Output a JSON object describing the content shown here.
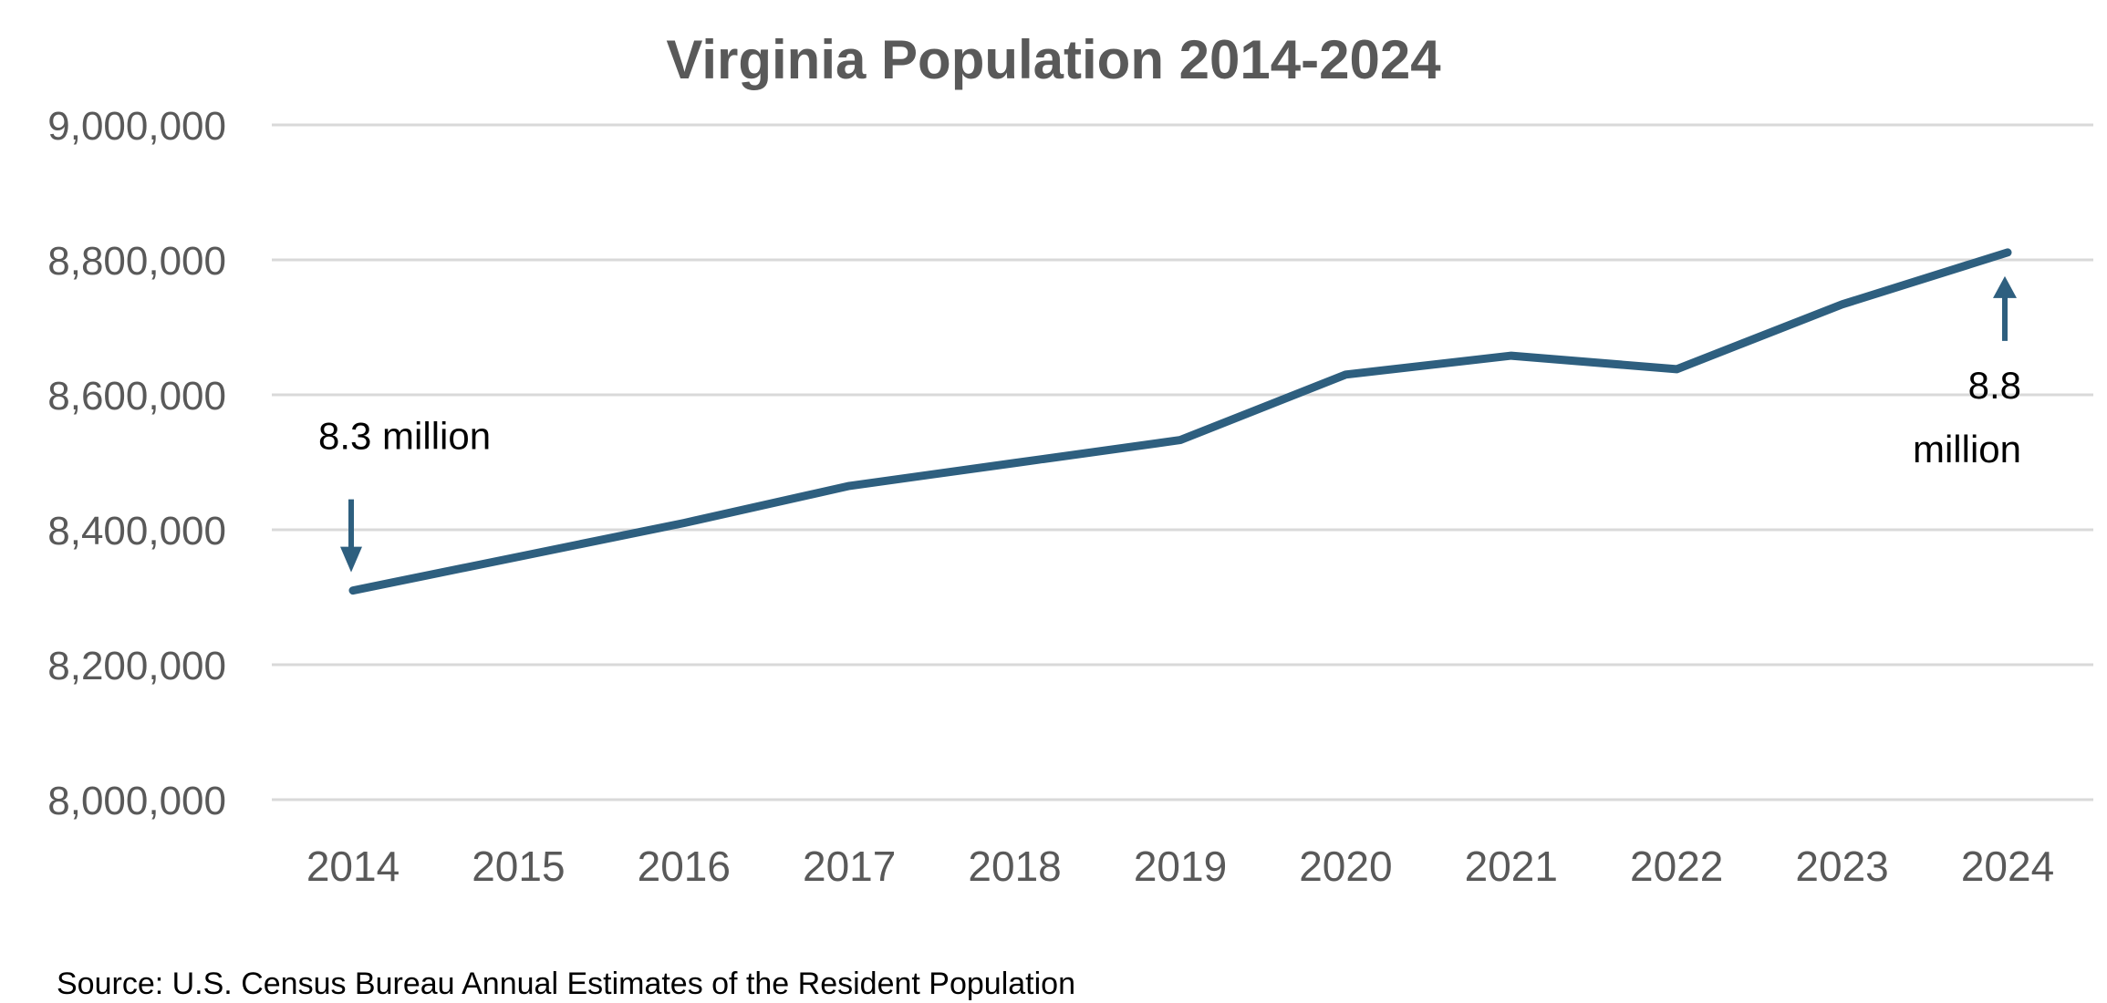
{
  "chart_data": {
    "type": "line",
    "title": "Virginia Population 2014-2024",
    "xlabel": "",
    "ylabel": "",
    "x": [
      "2014",
      "2015",
      "2016",
      "2017",
      "2018",
      "2019",
      "2020",
      "2021",
      "2022",
      "2023",
      "2024"
    ],
    "series": [
      {
        "name": "Virginia Population",
        "color": "#2e5f7f",
        "values": [
          8310000,
          8360000,
          8410000,
          8465000,
          8499000,
          8533000,
          8630000,
          8658000,
          8638000,
          8734000,
          8811000
        ]
      }
    ],
    "ylim": [
      8000000,
      9000000
    ],
    "yticks": [
      8000000,
      8200000,
      8400000,
      8600000,
      8800000,
      9000000
    ],
    "ytick_labels": [
      "8,000,000",
      "8,200,000",
      "8,400,000",
      "8,600,000",
      "8,800,000",
      "9,000,000"
    ],
    "grid": true,
    "legend": "none",
    "annotations": [
      {
        "text_lines": [
          "8.3 million"
        ],
        "year": "2014",
        "arrow": "down"
      },
      {
        "text_lines": [
          "8.8",
          "million"
        ],
        "year": "2024",
        "arrow": "up"
      }
    ],
    "source": "Source: U.S. Census Bureau Annual Estimates of the Resident Population"
  }
}
